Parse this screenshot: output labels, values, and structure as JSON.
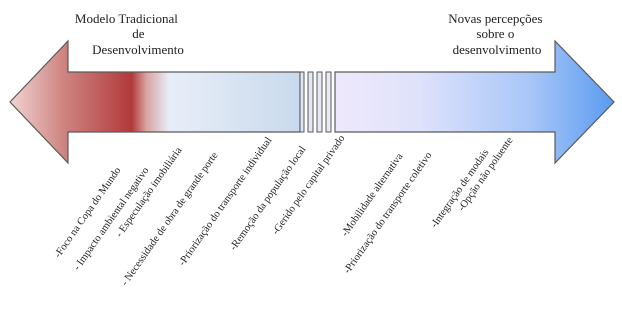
{
  "left_heading": [
    "Modelo Tradicional",
    "de",
    "Desenvolvimento"
  ],
  "right_heading": [
    "Novas percepções",
    "sobre o",
    "desenvolvimento"
  ],
  "colors": {
    "left_dark": "#b2393b",
    "left_light": "#f6dede",
    "right_light": "#ece8fa",
    "right_dark": "#5b9bf0",
    "outline": "#4a4a4a"
  },
  "left_items": [
    "-Foco na Copa do Mundo",
    "- Impacto ambiental negativo",
    "- Especulação imobiliária",
    "- Necessidade de obra de grande porte",
    "-Priorização do transporte individual",
    "-Remoção da população local",
    "-Gerido pelo capital privado"
  ],
  "right_items": [
    "-Mobilidade alternativa",
    "-Priorização do transporte coletivo",
    "-Integração de modais",
    "-Opção não poluente"
  ]
}
